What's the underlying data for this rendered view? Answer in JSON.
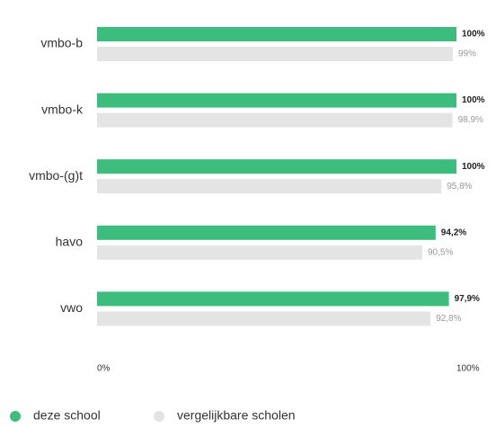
{
  "chart_data": {
    "type": "bar",
    "orientation": "horizontal",
    "categories": [
      "vmbo-b",
      "vmbo-k",
      "vmbo-(g)t",
      "havo",
      "vwo"
    ],
    "series": [
      {
        "name": "deze school",
        "color": "#3dbd7d",
        "values": [
          100,
          100,
          100,
          94.2,
          97.9
        ],
        "value_labels": [
          "100%",
          "100%",
          "100%",
          "94,2%",
          "97,9%"
        ]
      },
      {
        "name": "vergelijkbare scholen",
        "color": "#e4e4e4",
        "values": [
          99,
          98.9,
          95.8,
          90.5,
          92.8
        ],
        "value_labels": [
          "99%",
          "98,9%",
          "95,8%",
          "90,5%",
          "92,8%"
        ]
      }
    ],
    "xlim": [
      0,
      100
    ],
    "xticks": [
      {
        "value": 0,
        "label": "0%"
      },
      {
        "value": 100,
        "label": "100%"
      }
    ],
    "legend": "bottom-left"
  }
}
